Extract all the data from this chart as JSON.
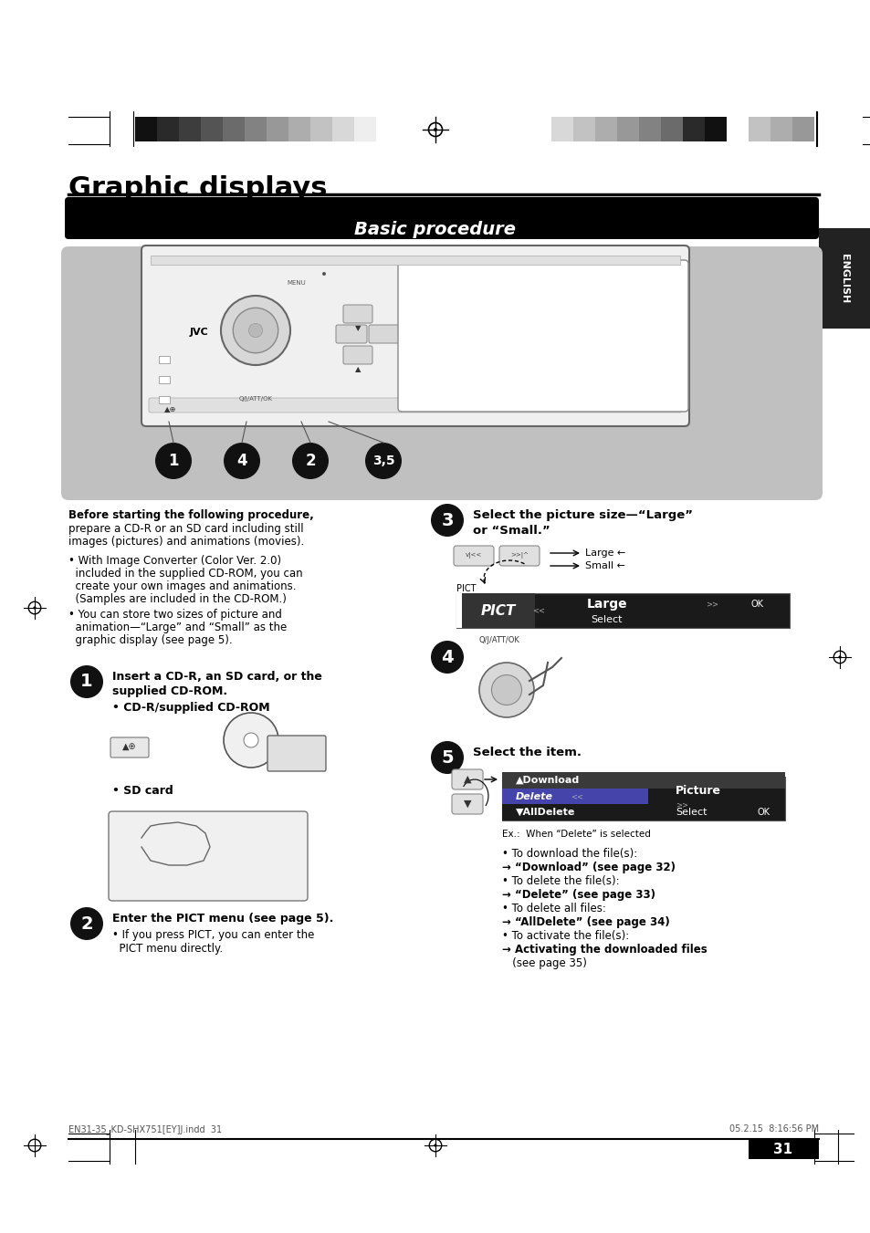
{
  "page_bg": "#ffffff",
  "title": "Graphic displays",
  "section_title": "Basic procedure",
  "page_number": "31",
  "footer_left": "EN31-35_KD-SHX751[EY]J.indd  31",
  "footer_right": "05.2.15  8:16:56 PM",
  "header_bar_left_colors": [
    "#111111",
    "#2a2a2a",
    "#3d3d3d",
    "#545454",
    "#6b6b6b",
    "#828282",
    "#989898",
    "#adadad",
    "#c2c2c2",
    "#d8d8d8",
    "#eeeeee",
    "#ffffff"
  ],
  "header_bar_right_colors": [
    "#d8d8d8",
    "#c2c2c2",
    "#adadad",
    "#989898",
    "#828282",
    "#6b6b6b",
    "#2a2a2a",
    "#111111",
    "#ffffff",
    "#c2c2c2",
    "#adadad",
    "#989898"
  ],
  "english_tab_bg": "#222222",
  "before_text_bold": "Before starting the following procedure,",
  "before_text1": "prepare a CD-R or an SD card including still",
  "before_text2": "images (pictures) and animations (movies).",
  "bullet1a": "• With Image Converter (Color Ver. 2.0)",
  "bullet1b": "  included in the supplied CD-ROM, you can",
  "bullet1c": "  create your own images and animations.",
  "bullet1d": "  (Samples are included in the CD-ROM.)",
  "bullet2a": "• You can store two sizes of picture and",
  "bullet2b": "  animation—“Large” and “Small” as the",
  "bullet2c": "  graphic display (see page 5).",
  "step1_line1": "Insert a CD-R, an SD card, or the",
  "step1_line2": "supplied CD-ROM.",
  "step1_sub1": "• CD-R/supplied CD-ROM",
  "step1_sub2": "• SD card",
  "step2_line1": "Enter the PICT menu (see page 5).",
  "step2_sub1": "• If you press PICT, you can enter the",
  "step2_sub2": "  PICT menu directly.",
  "step3_line1": "Select the picture size—“Large”",
  "step3_line2": "or “Small.”",
  "step5_line1": "Select the item.",
  "ex_note": "Ex.:  When “Delete” is selected",
  "dl_bullet1": "• To download the file(s):",
  "dl_arrow1": "→ “Download” (see page 32)",
  "dl_bullet2": "• To delete the file(s):",
  "dl_arrow2": "→ “Delete” (see page 33)",
  "dl_bullet3": "• To delete all files:",
  "dl_arrow3": "→ “AllDelete” (see page 34)",
  "dl_bullet4": "• To activate the file(s):",
  "dl_arrow4": "→ Activating the downloaded files",
  "dl_arrow4b": "   (see page 35)"
}
